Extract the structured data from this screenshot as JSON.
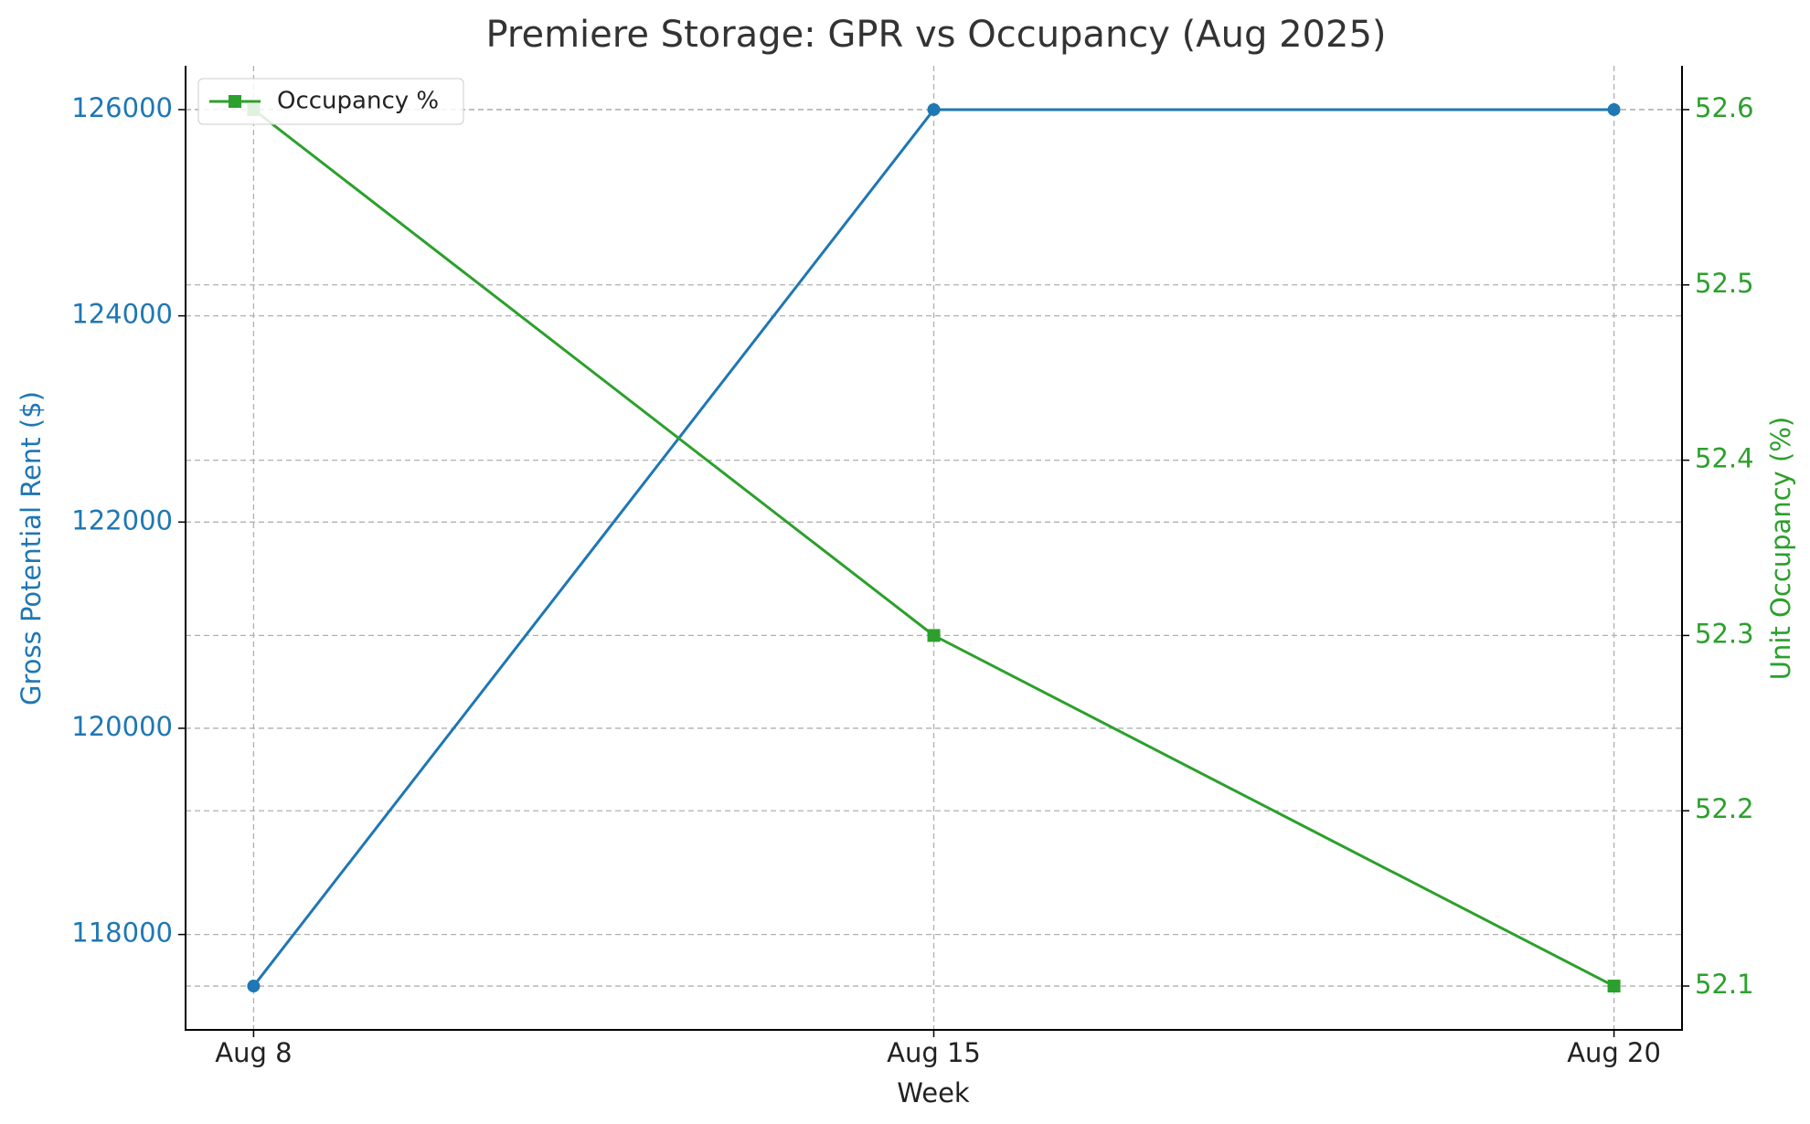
{
  "chart_data": {
    "type": "line",
    "title": "Premiere Storage: GPR vs Occupancy (Aug 2025)",
    "x_label": "Week",
    "y_label": "Gross Potential Rent ($)",
    "y2_label": "Unit Occupancy (%)",
    "categories": [
      "Aug 8",
      "Aug 15",
      "Aug 20"
    ],
    "series": [
      {
        "color": "#1f77b4",
        "marker": "circle",
        "values": [
          117500,
          126000,
          126000
        ]
      },
      {
        "name": "Occupancy %",
        "color": "#2ca02c",
        "marker": "square",
        "axis": "y2",
        "values": [
          52.6,
          52.3,
          52.1
        ]
      }
    ],
    "ylim": [
      117075,
      126425
    ],
    "yticks": [
      118000,
      120000,
      122000,
      124000,
      126000
    ],
    "y2lim": [
      52.075,
      52.625
    ],
    "y2ticks": [
      52.1,
      52.2,
      52.3,
      52.4,
      52.5,
      52.6
    ],
    "grid": true,
    "legend": "upper-left"
  }
}
